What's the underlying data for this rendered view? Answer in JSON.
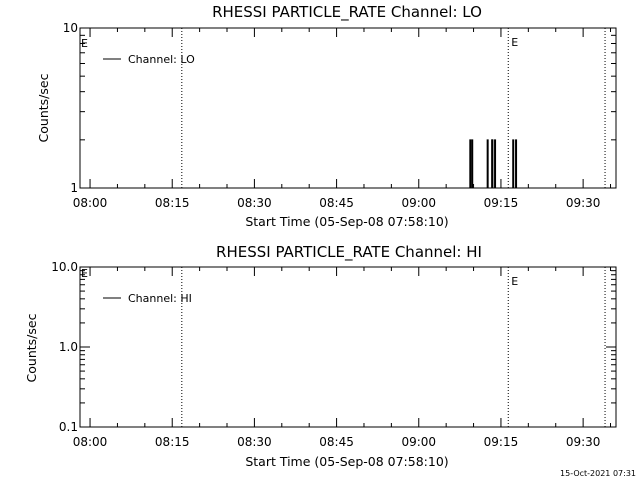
{
  "footer": {
    "timestamp": "15-Oct-2021 07:31"
  },
  "chart_data": [
    {
      "type": "line",
      "title": "RHESSI PARTICLE_RATE Channel: LO",
      "xlabel": "Start Time (05-Sep-08 07:58:10)",
      "ylabel": "Counts/sec",
      "yscale": "log",
      "ylim": [
        1,
        10
      ],
      "xlim": [
        "07:58:10",
        "09:36:00"
      ],
      "x_ticks": [
        "08:00",
        "08:15",
        "08:30",
        "08:45",
        "09:00",
        "09:15",
        "09:30"
      ],
      "y_ticks": [
        "1",
        "10"
      ],
      "legend": {
        "placement": "top-left",
        "entries": [
          "Channel: LO"
        ]
      },
      "event_markers": [
        {
          "time": "08:16:45",
          "label": ""
        },
        {
          "time": "09:16:20",
          "label": "E"
        },
        {
          "time": "09:34:00",
          "label": ""
        }
      ],
      "start_marker_label": "E",
      "series": [
        {
          "name": "Channel: LO",
          "spikes": [
            {
              "start": "09:09:30",
              "end": "09:09:40",
              "value": 2
            },
            {
              "start": "09:12:40",
              "end": "09:13:20",
              "value": 2
            },
            {
              "start": "09:13:30",
              "end": "09:13:50",
              "value": 2
            },
            {
              "start": "09:17:20",
              "end": "09:17:40",
              "value": 2
            }
          ],
          "baseline": 1
        }
      ]
    },
    {
      "type": "line",
      "title": "RHESSI PARTICLE_RATE Channel: HI",
      "xlabel": "Start Time (05-Sep-08 07:58:10)",
      "ylabel": "Counts/sec",
      "yscale": "log",
      "ylim": [
        0.1,
        10
      ],
      "xlim": [
        "07:58:10",
        "09:36:00"
      ],
      "x_ticks": [
        "08:00",
        "08:15",
        "08:30",
        "08:45",
        "09:00",
        "09:15",
        "09:30"
      ],
      "y_ticks": [
        "0.1",
        "1.0",
        "10.0"
      ],
      "legend": {
        "placement": "top-left",
        "entries": [
          "Channel: HI"
        ]
      },
      "event_markers": [
        {
          "time": "08:16:45",
          "label": ""
        },
        {
          "time": "09:16:20",
          "label": "E"
        },
        {
          "time": "09:34:00",
          "label": ""
        }
      ],
      "start_marker_label": "E",
      "series": [
        {
          "name": "Channel: HI",
          "spikes": [],
          "baseline": null
        }
      ]
    }
  ]
}
